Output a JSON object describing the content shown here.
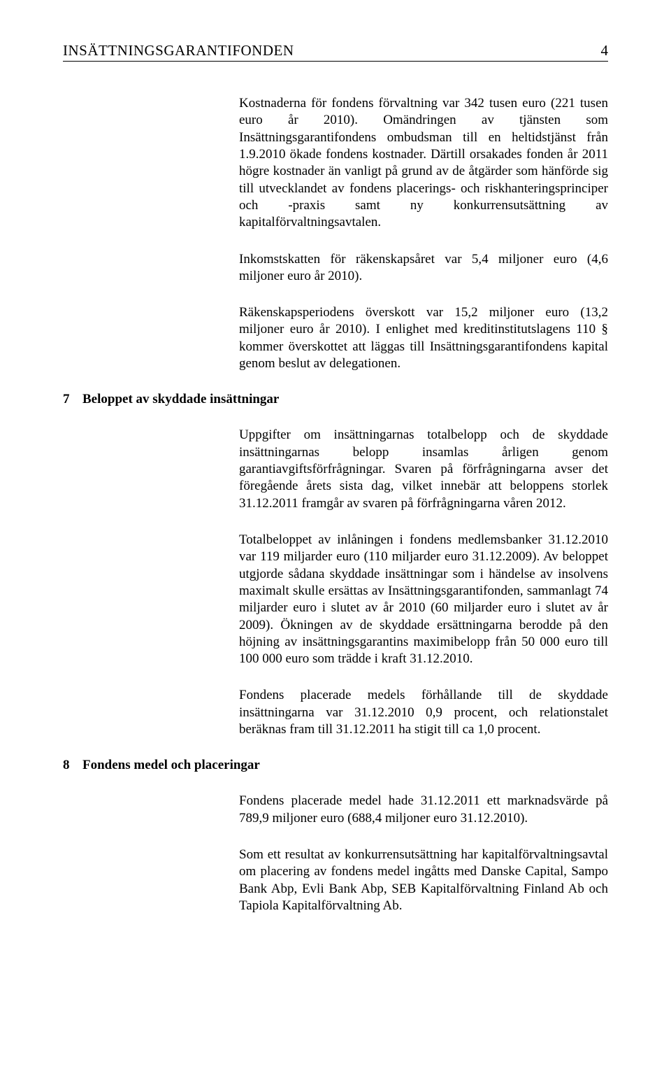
{
  "page": {
    "header_title": "INSÄTTNINGSGARANTIFONDEN",
    "page_number": "4"
  },
  "paragraphs": {
    "p1": "Kostnaderna för fondens förvaltning var 342 tusen euro (221 tusen euro år 2010). Omändringen av tjänsten som Insättningsgarantifondens ombudsman till en heltidstjänst från 1.9.2010 ökade fondens kostnader. Därtill orsakades fonden år 2011 högre kostnader än vanligt på grund av de åtgärder som hänförde sig till utvecklandet av fondens placerings- och riskhanteringsprinciper och -praxis samt ny konkurrensutsättning av kapitalförvaltningsavtalen.",
    "p2": "Inkomstskatten för räkenskapsåret var 5,4 miljoner euro (4,6 miljoner euro år 2010).",
    "p3": "Räkenskapsperiodens överskott var 15,2 miljoner euro (13,2 miljoner euro år 2010). I enlighet med kreditinstitutslagens 110 § kommer överskottet att läggas till Insättningsgarantifondens kapital genom beslut av delegationen.",
    "p4": "Uppgifter om insättningarnas totalbelopp och de skyddade insättningarnas belopp insamlas årligen genom garantiavgiftsförfrågningar. Svaren på förfrågningarna avser det föregående årets sista dag, vilket innebär att beloppens storlek 31.12.2011 framgår av svaren på förfrågningarna våren 2012.",
    "p5": "Totalbeloppet av inlåningen i fondens medlemsbanker 31.12.2010 var 119 miljarder euro (110 miljarder euro 31.12.2009). Av beloppet utgjorde sådana skyddade insättningar som i händelse av insolvens maximalt skulle ersättas av Insättningsgarantifonden, sammanlagt 74 miljarder euro i slutet av år 2010 (60 miljarder euro i slutet av år 2009). Ökningen av de skyddade ersättningarna berodde på den höjning av insättningsgarantins maximibelopp från 50 000 euro till 100 000 euro som trädde i kraft 31.12.2010.",
    "p6": "Fondens placerade medels förhållande till de skyddade insättningarna var 31.12.2010 0,9 procent, och relationstalet beräknas fram till 31.12.2011 ha stigit till ca 1,0 procent.",
    "p7": "Fondens placerade medel hade 31.12.2011 ett marknadsvärde på 789,9 miljoner euro (688,4 miljoner euro 31.12.2010).",
    "p8": "Som ett resultat av konkurrensutsättning har kapitalförvaltningsavtal om placering av fondens medel ingåtts med Danske Capital, Sampo Bank Abp, Evli Bank Abp, SEB Kapitalförvaltning Finland Ab och Tapiola Kapitalförvaltning Ab."
  },
  "sections": {
    "s7": {
      "num": "7",
      "title": "Beloppet av skyddade insättningar"
    },
    "s8": {
      "num": "8",
      "title": "Fondens medel och placeringar"
    }
  }
}
